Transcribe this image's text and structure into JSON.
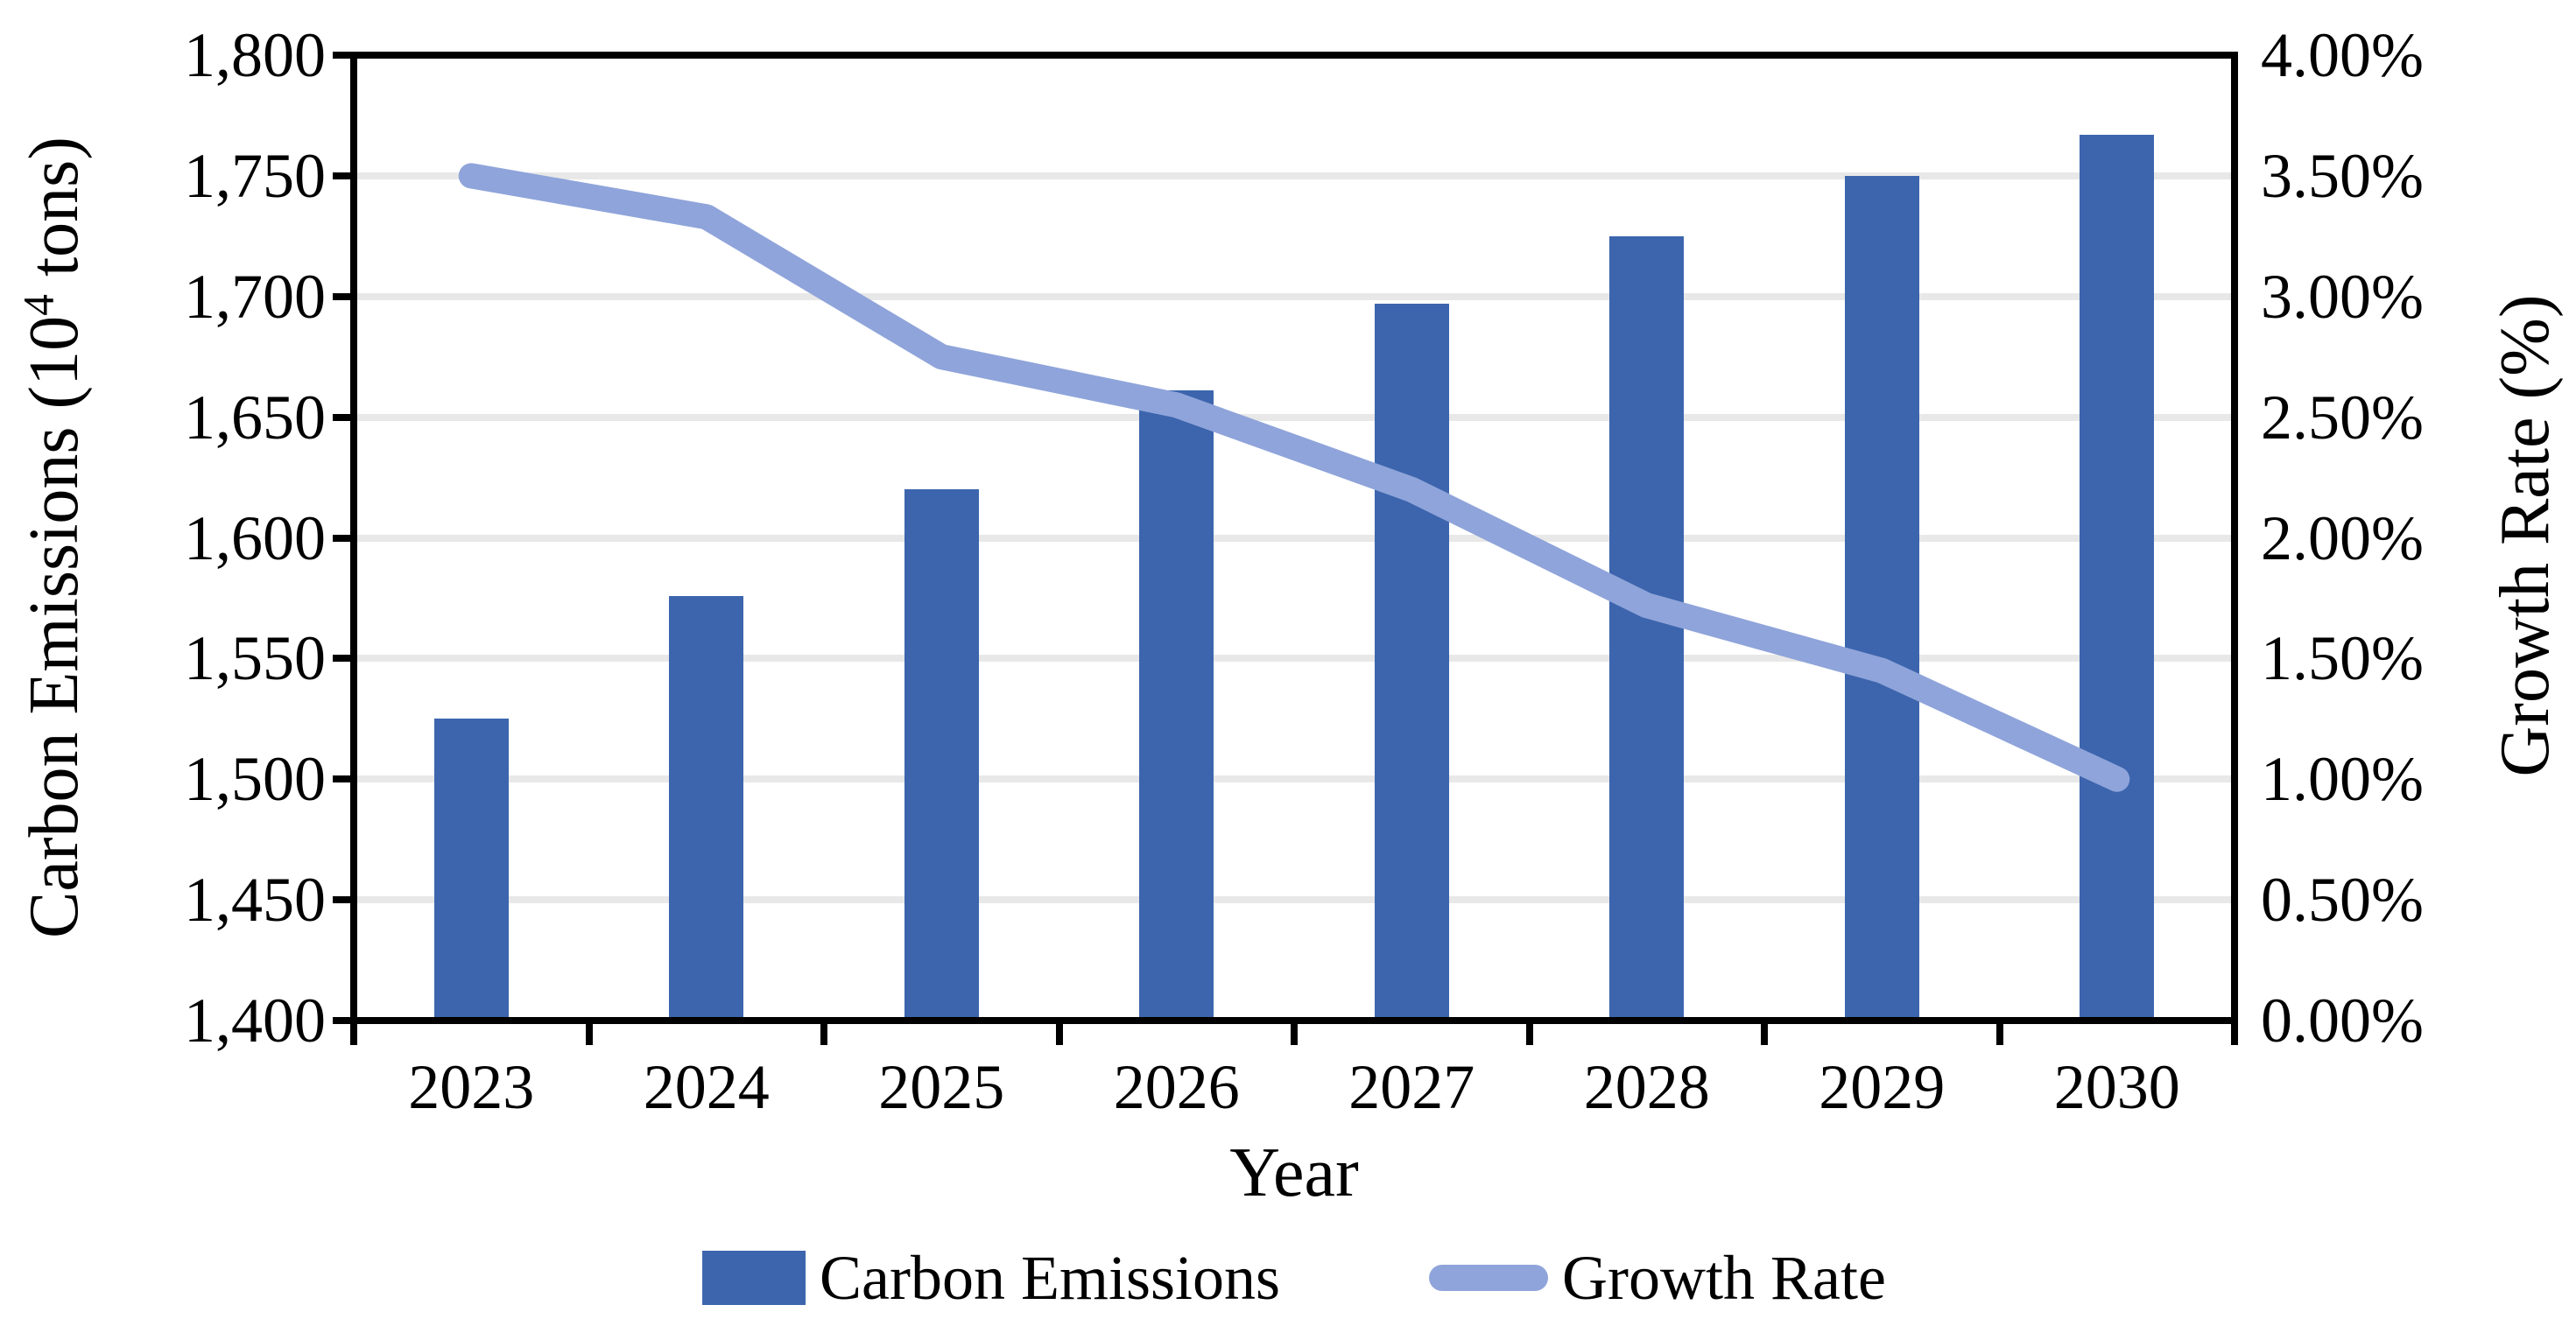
{
  "chart_data": {
    "type": "bar",
    "subtype": "combo-bar-line-dual-axis",
    "title": "",
    "categories": [
      "2023",
      "2024",
      "2025",
      "2026",
      "2027",
      "2028",
      "2029",
      "2030"
    ],
    "series": [
      {
        "name": "Carbon Emissions",
        "type": "bar",
        "axis": "left",
        "values": [
          1525,
          1576,
          1620,
          1661,
          1697,
          1725,
          1750,
          1767
        ]
      },
      {
        "name": "Growth Rate",
        "type": "line",
        "axis": "right",
        "values": [
          3.5,
          3.33,
          2.75,
          2.55,
          2.2,
          1.72,
          1.45,
          1.0
        ]
      }
    ],
    "left_axis": {
      "title": "Carbon Emissions (10⁴ tons)",
      "title_parts": [
        "Carbon Emissions (10",
        "4",
        " tons)"
      ],
      "min": 1400,
      "max": 1800,
      "step": 50,
      "tick_labels": [
        "1,400",
        "1,450",
        "1,500",
        "1,550",
        "1,600",
        "1,650",
        "1,700",
        "1,750",
        "1,800"
      ]
    },
    "right_axis": {
      "title": "Growth Rate (%)",
      "min": 0,
      "max": 4,
      "step": 0.5,
      "tick_labels": [
        "0.00%",
        "0.50%",
        "1.00%",
        "1.50%",
        "2.00%",
        "2.50%",
        "3.00%",
        "3.50%",
        "4.00%"
      ]
    },
    "x_axis": {
      "title": "Year"
    },
    "legend": {
      "position": "bottom",
      "entries": [
        "Carbon Emissions",
        "Growth Rate"
      ]
    },
    "grid": "horizontal-on",
    "colors": {
      "bar": "#3C65AD",
      "line": "#8FA4DA",
      "gridline": "#E8E8E8",
      "axis": "#000000",
      "text": "#000000",
      "background": "#FFFFFF"
    }
  }
}
